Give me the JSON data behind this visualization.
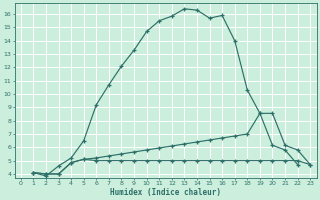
{
  "xlabel": "Humidex (Indice chaleur)",
  "bg_color": "#cceedd",
  "grid_color": "#ffffff",
  "line_color": "#2d7068",
  "xlim": [
    -0.5,
    23.5
  ],
  "ylim": [
    3.7,
    16.8
  ],
  "yticks": [
    4,
    5,
    6,
    7,
    8,
    9,
    10,
    11,
    12,
    13,
    14,
    15,
    16
  ],
  "xticks": [
    0,
    1,
    2,
    3,
    4,
    5,
    6,
    7,
    8,
    9,
    10,
    11,
    12,
    13,
    14,
    15,
    16,
    17,
    18,
    19,
    20,
    21,
    22,
    23
  ],
  "curve1_x": [
    1,
    2,
    3,
    4,
    5,
    6,
    7,
    8,
    9,
    10,
    11,
    12,
    13,
    14,
    15,
    16,
    17,
    18,
    19,
    20,
    21,
    22
  ],
  "curve1_y": [
    4.1,
    3.85,
    4.6,
    5.2,
    6.5,
    9.2,
    10.7,
    12.1,
    13.3,
    14.7,
    15.5,
    15.85,
    16.4,
    16.3,
    15.7,
    15.9,
    14.0,
    10.3,
    8.55,
    6.15,
    5.8,
    4.7
  ],
  "curve2_x": [
    1,
    2,
    3,
    4,
    5,
    6,
    7,
    8,
    9,
    10,
    11,
    12,
    13,
    14,
    15,
    16,
    17,
    18,
    19,
    20,
    21,
    22,
    23
  ],
  "curve2_y": [
    4.1,
    4.0,
    4.0,
    4.85,
    5.1,
    5.2,
    5.35,
    5.5,
    5.65,
    5.8,
    5.95,
    6.1,
    6.25,
    6.4,
    6.55,
    6.7,
    6.85,
    7.0,
    8.55,
    8.55,
    6.15,
    5.8,
    4.7
  ],
  "curve3_x": [
    1,
    2,
    3,
    4,
    5,
    6,
    7,
    8,
    9,
    10,
    11,
    12,
    13,
    14,
    15,
    16,
    17,
    18,
    19,
    20,
    21,
    22,
    23
  ],
  "curve3_y": [
    4.1,
    4.0,
    4.0,
    4.85,
    5.1,
    5.0,
    5.0,
    5.0,
    5.0,
    5.0,
    5.0,
    5.0,
    5.0,
    5.0,
    5.0,
    5.0,
    5.0,
    5.0,
    5.0,
    5.0,
    5.0,
    5.0,
    4.7
  ]
}
